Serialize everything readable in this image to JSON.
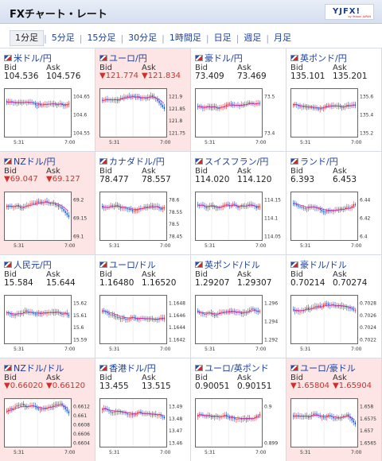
{
  "header": {
    "title": "FXチャート・レート",
    "logo": "YJFX!",
    "logo_sub": "by Yahoo! JAPAN"
  },
  "tabs": [
    "1分足",
    "5分足",
    "15分足",
    "30分足",
    "1時間足",
    "日足",
    "週足",
    "月足"
  ],
  "active_tab": 0,
  "labels": {
    "bid": "Bid",
    "ask": "Ask"
  },
  "colors": {
    "link": "#1a3f9e",
    "down": "#d0302a",
    "down_bg": "#fde5e5",
    "candle_up": "#d33",
    "candle_down": "#1b4fd1",
    "ma1": "#cc1a9e",
    "ma2": "#1a9e4a"
  },
  "pairs": [
    {
      "name": "米ドル/円",
      "bid": "104.536",
      "ask": "104.576",
      "down": false,
      "ticks": [
        "104.65",
        "104.6",
        "104.55"
      ],
      "times": [
        "5:31",
        "7:00"
      ]
    },
    {
      "name": "ユーロ/円",
      "bid": "▼121.774",
      "ask": "▼121.834",
      "down": true,
      "ticks": [
        "121.9",
        "121.85",
        "121.8",
        "121.75"
      ],
      "times": [
        "5:31",
        "7:00"
      ]
    },
    {
      "name": "豪ドル/円",
      "bid": "73.409",
      "ask": "73.469",
      "down": false,
      "ticks": [
        "73.5",
        "73.4"
      ],
      "times": [
        "5:31",
        "7:00"
      ]
    },
    {
      "name": "英ポンド/円",
      "bid": "135.101",
      "ask": "135.201",
      "down": false,
      "ticks": [
        "135.6",
        "135.4",
        "135.2"
      ],
      "times": [
        "5:31",
        "7:00"
      ]
    },
    {
      "name": "NZドル/円",
      "bid": "▼69.047",
      "ask": "▼69.127",
      "down": true,
      "ticks": [
        "69.2",
        "69.15",
        "69.1"
      ],
      "times": [
        "5:31",
        "7:00"
      ]
    },
    {
      "name": "カナダドル/円",
      "bid": "78.477",
      "ask": "78.557",
      "down": false,
      "ticks": [
        "78.6",
        "78.55",
        "78.5",
        "78.45"
      ],
      "times": [
        "5:31",
        "7:00"
      ]
    },
    {
      "name": "スイスフラン/円",
      "bid": "114.020",
      "ask": "114.120",
      "down": false,
      "ticks": [
        "114.15",
        "114.1",
        "114.05"
      ],
      "times": [
        "5:31",
        "7:00"
      ]
    },
    {
      "name": "ランド/円",
      "bid": "6.393",
      "ask": "6.453",
      "down": false,
      "ticks": [
        "6.44",
        "6.42",
        "6.4"
      ],
      "times": [
        "5:31",
        "7:00"
      ]
    },
    {
      "name": "人民元/円",
      "bid": "15.584",
      "ask": "15.644",
      "down": false,
      "ticks": [
        "15.62",
        "15.61",
        "15.6",
        "15.59"
      ],
      "times": [
        "5:31",
        "7:00"
      ]
    },
    {
      "name": "ユーロ/ドル",
      "bid": "1.16480",
      "ask": "1.16520",
      "down": false,
      "ticks": [
        "1.1648",
        "1.1646",
        "1.1644",
        "1.1642"
      ],
      "times": [
        "5:31",
        "7:00"
      ]
    },
    {
      "name": "英ポンド/ドル",
      "bid": "1.29207",
      "ask": "1.29307",
      "down": false,
      "ticks": [
        "1.296",
        "1.294",
        "1.292"
      ],
      "times": [
        "5:31",
        "7:00"
      ]
    },
    {
      "name": "豪ドル/ドル",
      "bid": "0.70214",
      "ask": "0.70274",
      "down": false,
      "ticks": [
        "0.7028",
        "0.7026",
        "0.7024",
        "0.7022"
      ],
      "times": [
        "5:31",
        "7:00"
      ]
    },
    {
      "name": "NZドル/ドル",
      "bid": "▼0.66020",
      "ask": "▼0.66120",
      "down": true,
      "ticks": [
        "0.6612",
        "0.661",
        "0.6608",
        "0.6606",
        "0.6604"
      ],
      "times": [
        "5:31",
        "7:00"
      ]
    },
    {
      "name": "香港ドル/円",
      "bid": "13.455",
      "ask": "13.515",
      "down": false,
      "ticks": [
        "13.49",
        "13.48",
        "13.47",
        "13.46"
      ],
      "times": [
        "5:31",
        "7:00"
      ]
    },
    {
      "name": "ユーロ/英ポンド",
      "bid": "0.90051",
      "ask": "0.90151",
      "down": false,
      "ticks": [
        "0.9",
        "0.899"
      ],
      "times": [
        "5:31",
        "7:00"
      ]
    },
    {
      "name": "ユーロ/豪ドル",
      "bid": "▼1.65804",
      "ask": "▼1.65904",
      "down": true,
      "ticks": [
        "1.658",
        "1.6575",
        "1.657",
        "1.6565"
      ],
      "times": [
        "5:31",
        "7:00"
      ]
    }
  ]
}
